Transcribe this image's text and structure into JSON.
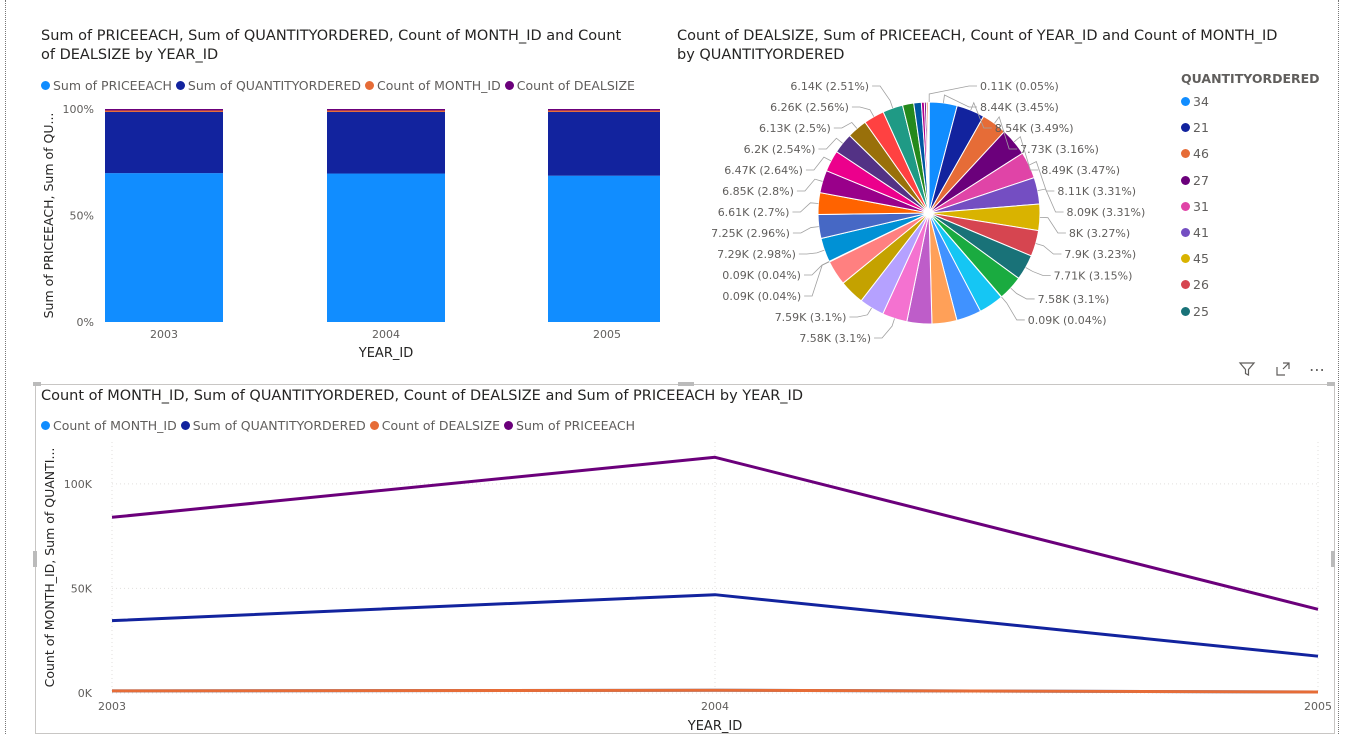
{
  "chart_data": [
    {
      "type": "bar",
      "stacked": "100%",
      "title": "Sum of PRICEEACH, Sum of QUANTITYORDERED, Count of MONTH_ID and Count of DEALSIZE by YEAR_ID",
      "title_line1": "Sum of PRICEEACH, Sum of QUANTITYORDERED, Count of MONTH_ID and Count",
      "title_line2": "of DEALSIZE by YEAR_ID",
      "xlabel": "YEAR_ID",
      "ylabel": "Sum of PRICEEACH, Sum of QU...",
      "yticks": [
        "100%",
        "50%",
        "0%"
      ],
      "ylim": [
        0,
        100
      ],
      "categories": [
        "2003",
        "2004",
        "2005"
      ],
      "legend_position": "top-left",
      "series": [
        {
          "name": "Sum of PRICEEACH",
          "color": "#118DFF",
          "values": [
            69.9,
            69.7,
            68.7
          ]
        },
        {
          "name": "Sum of QUANTITYORDERED",
          "color": "#12239E",
          "values": [
            28.7,
            28.9,
            29.9
          ]
        },
        {
          "name": "Count of MONTH_ID",
          "color": "#E66C37",
          "values": [
            0.7,
            0.7,
            0.7
          ]
        },
        {
          "name": "Count of DEALSIZE",
          "color": "#6B007B",
          "values": [
            0.7,
            0.7,
            0.7
          ]
        }
      ]
    },
    {
      "type": "pie",
      "title": "Count of DEALSIZE, Sum of PRICEEACH, Count of YEAR_ID and Count of MONTH_ID by QUANTITYORDERED",
      "title_line1": "Count of DEALSIZE, Sum of PRICEEACH, Count of YEAR_ID and Count of MONTH_ID",
      "title_line2": "by QUANTITYORDERED",
      "legend_title": "QUANTITYORDERED",
      "legend_position": "right",
      "legend": [
        {
          "label": "34",
          "color": "#118DFF"
        },
        {
          "label": "21",
          "color": "#12239E"
        },
        {
          "label": "46",
          "color": "#E66C37"
        },
        {
          "label": "27",
          "color": "#6B007B"
        },
        {
          "label": "31",
          "color": "#E044A7"
        },
        {
          "label": "41",
          "color": "#744EC2"
        },
        {
          "label": "45",
          "color": "#D9B300"
        },
        {
          "label": "26",
          "color": "#D64550"
        },
        {
          "label": "25",
          "color": "#197278"
        }
      ],
      "slices": [
        {
          "value": 0.11,
          "label": "0.11K (0.05%)",
          "color": "#E8C600"
        },
        {
          "value": 8.44,
          "label": "8.44K (3.45%)",
          "color": "#118DFF"
        },
        {
          "value": 8.54,
          "label": "8.54K (3.49%)",
          "color": "#12239E"
        },
        {
          "value": 7.73,
          "label": "7.73K (3.16%)",
          "color": "#E66C37"
        },
        {
          "value": 8.49,
          "label": "8.49K (3.47%)",
          "color": "#6B007B"
        },
        {
          "value": 8.11,
          "label": "8.11K (3.31%)",
          "color": "#E044A7"
        },
        {
          "value": 8.09,
          "label": "8.09K (3.31%)",
          "color": "#744EC2"
        },
        {
          "value": 8.0,
          "label": "8K (3.27%)",
          "color": "#D9B300"
        },
        {
          "value": 7.9,
          "label": "7.9K (3.23%)",
          "color": "#D64550"
        },
        {
          "value": 7.71,
          "label": "7.71K (3.15%)",
          "color": "#197278"
        },
        {
          "value": 7.58,
          "label": "7.58K (3.1%)",
          "color": "#1AAB40"
        },
        {
          "value": 0.09,
          "label": "0.09K (0.04%)",
          "color": "#15C6F4"
        },
        {
          "value": 7.58,
          "label": "",
          "color": "#15C6F4"
        },
        {
          "value": 7.58,
          "label": "",
          "color": "#4092FF"
        },
        {
          "value": 7.58,
          "label": "",
          "color": "#FFA058"
        },
        {
          "value": 7.58,
          "label": "",
          "color": "#BE5DC9"
        },
        {
          "value": 7.58,
          "label": "7.58K (3.1%)",
          "color": "#F472D0"
        },
        {
          "value": 7.59,
          "label": "7.59K (3.1%)",
          "color": "#B5A1FF"
        },
        {
          "value": 7.58,
          "label": "",
          "color": "#C4A200"
        },
        {
          "value": 7.58,
          "label": "",
          "color": "#FF8080"
        },
        {
          "value": 0.09,
          "label": "0.09K (0.04%)",
          "color": "#00DBBC"
        },
        {
          "value": 0.09,
          "label": "0.09K (0.04%)",
          "color": "#5BD667"
        },
        {
          "value": 7.29,
          "label": "7.29K (2.98%)",
          "color": "#0091D5"
        },
        {
          "value": 7.25,
          "label": "7.25K (2.96%)",
          "color": "#4668C5"
        },
        {
          "value": 6.61,
          "label": "6.61K (2.7%)",
          "color": "#FF6300"
        },
        {
          "value": 6.85,
          "label": "6.85K (2.8%)",
          "color": "#99008A"
        },
        {
          "value": 6.47,
          "label": "6.47K (2.64%)",
          "color": "#EC008C"
        },
        {
          "value": 6.2,
          "label": "6.2K (2.54%)",
          "color": "#533285"
        },
        {
          "value": 6.13,
          "label": "6.13K (2.5%)",
          "color": "#99700A"
        },
        {
          "value": 6.26,
          "label": "6.26K (2.56%)",
          "color": "#FF4141"
        },
        {
          "value": 6.14,
          "label": "6.14K (2.51%)",
          "color": "#1F9A85"
        },
        {
          "value": 3.4,
          "label": "",
          "color": "#25891C"
        },
        {
          "value": 2.3,
          "label": "",
          "color": "#0057A2"
        },
        {
          "value": 0.9,
          "label": "",
          "color": "#B2008A"
        },
        {
          "value": 0.6,
          "label": "",
          "color": "#6B007B"
        },
        {
          "value": 0.5,
          "label": "",
          "color": "#E66C37"
        },
        {
          "value": 0.3,
          "label": "",
          "color": "#12239E"
        }
      ]
    },
    {
      "type": "line",
      "title": "Count of MONTH_ID, Sum of QUANTITYORDERED, Count of DEALSIZE and Sum of PRICEEACH by YEAR_ID",
      "xlabel": "YEAR_ID",
      "ylabel": "Count of MONTH_ID, Sum of QUANTI...",
      "yticks": [
        "100K",
        "50K",
        "0K"
      ],
      "ylim": [
        0,
        120000
      ],
      "x": [
        "2003",
        "2004",
        "2005"
      ],
      "grid": true,
      "legend_position": "top-left",
      "series": [
        {
          "name": "Count of MONTH_ID",
          "color": "#118DFF",
          "values": [
            1000,
            1300,
            500
          ]
        },
        {
          "name": "Sum of QUANTITYORDERED",
          "color": "#12239E",
          "values": [
            34600,
            47000,
            17600
          ]
        },
        {
          "name": "Count of DEALSIZE",
          "color": "#E66C37",
          "values": [
            1000,
            1300,
            500
          ]
        },
        {
          "name": "Sum of PRICEEACH",
          "color": "#6B007B",
          "values": [
            84000,
            112700,
            40000
          ]
        }
      ]
    }
  ],
  "toolbar": {
    "filter_icon": "filter-icon",
    "focus_icon": "focus-mode-icon",
    "more_label": "⋯"
  }
}
